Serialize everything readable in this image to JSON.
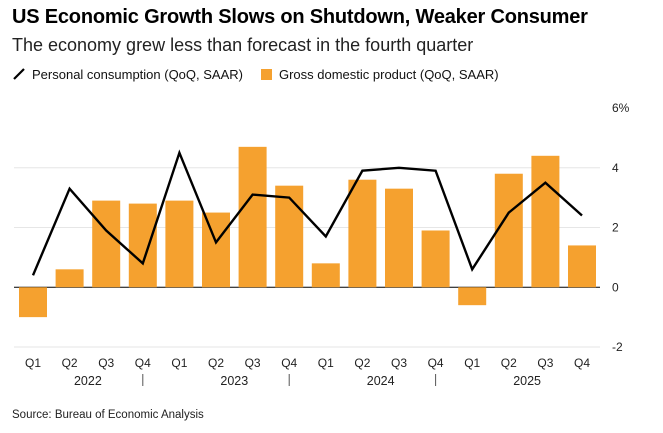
{
  "header": {
    "title": "US Economic Growth Slows on Shutdown, Weaker Consumer",
    "subtitle": "The economy grew less than forecast in the fourth quarter"
  },
  "legend": {
    "line_label": "Personal consumption (QoQ, SAAR)",
    "bar_label": "Gross domestic product (QoQ, SAAR)"
  },
  "footer": {
    "source": "Source: Bureau of Economic Analysis"
  },
  "colors": {
    "bar": "#F5A12F",
    "line": "#000000",
    "grid": "#e6e6e6",
    "axis": "#000000",
    "text": "#222222"
  },
  "chart_data": {
    "type": "bar",
    "title": "US Economic Growth Slows on Shutdown, Weaker Consumer",
    "categories": [
      "Q1",
      "Q2",
      "Q3",
      "Q4",
      "Q1",
      "Q2",
      "Q3",
      "Q4",
      "Q1",
      "Q2",
      "Q3",
      "Q4",
      "Q1",
      "Q2",
      "Q3",
      "Q4"
    ],
    "years": [
      {
        "label": "2022",
        "start": 0,
        "end": 3
      },
      {
        "label": "2023",
        "start": 4,
        "end": 7
      },
      {
        "label": "2024",
        "start": 8,
        "end": 11
      },
      {
        "label": "2025",
        "start": 12,
        "end": 15
      }
    ],
    "series": [
      {
        "name": "Gross domestic product (QoQ, SAAR)",
        "kind": "bar",
        "values": [
          -1.0,
          0.6,
          2.9,
          2.8,
          2.9,
          2.5,
          4.7,
          3.4,
          0.8,
          3.6,
          3.3,
          1.9,
          -0.6,
          3.8,
          4.4,
          1.4
        ]
      },
      {
        "name": "Personal consumption (QoQ, SAAR)",
        "kind": "line",
        "values": [
          0.4,
          3.3,
          1.9,
          0.8,
          4.5,
          1.5,
          3.1,
          3.0,
          1.7,
          3.9,
          4.0,
          3.9,
          0.6,
          2.5,
          3.5,
          2.4
        ]
      }
    ],
    "ylim": [
      -2,
      6
    ],
    "yticks": [
      {
        "value": 6,
        "label": "6%"
      },
      {
        "value": 4,
        "label": "4"
      },
      {
        "value": 2,
        "label": "2"
      },
      {
        "value": 0,
        "label": "0"
      },
      {
        "value": -2,
        "label": "-2"
      }
    ],
    "xlabel": "",
    "ylabel": "",
    "grid": true,
    "legend_position": "top-left"
  }
}
